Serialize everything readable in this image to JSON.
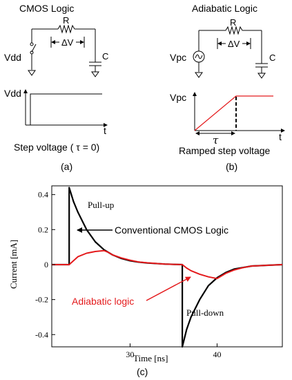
{
  "panel_a": {
    "title": "CMOS Logic",
    "resistor_label": "R",
    "delta_v_label": "ΔV",
    "capacitor_label": "C",
    "source_label": "Vdd",
    "axis_y_label": "Vdd",
    "axis_x_label": "t",
    "caption": "Step voltage ( τ = 0)",
    "tag": "(a)"
  },
  "panel_b": {
    "title": "Adiabatic Logic",
    "resistor_label": "R",
    "delta_v_label": "ΔV",
    "capacitor_label": "C",
    "source_label": "Vpc",
    "axis_y_label": "Vpc",
    "axis_x_label": "t",
    "tau_label": "τ",
    "caption": "Ramped step voltage",
    "tag": "(b)"
  },
  "panel_c": {
    "tag": "(c)",
    "annotation_pullup": "Pull-up",
    "annotation_pulldown": "Pull-down",
    "annotation_cmos": "Conventional CMOS Logic",
    "annotation_adiabatic": "Adiabatic logic",
    "colors": {
      "cmos": "#000000",
      "adiabatic": "#e41a1c"
    }
  },
  "chart_data": {
    "type": "line",
    "xlabel": "Time [ns]",
    "ylabel": "Current [mA]",
    "xlim": [
      21,
      47.5
    ],
    "ylim": [
      -0.47,
      0.45
    ],
    "x_ticks": [
      30,
      40
    ],
    "y_ticks": [
      0.4,
      0.2,
      0,
      -0.2,
      -0.4
    ],
    "y_tick_labels": [
      "0.4",
      "0.2",
      "0",
      "-0.2",
      "-0.4"
    ],
    "grid": false,
    "series": [
      {
        "color": "#000000",
        "x": [
          21,
          23,
          23,
          23.5,
          24,
          25,
          26,
          27,
          28,
          29,
          30,
          31,
          32,
          34,
          36,
          36,
          36.5,
          37,
          38,
          39,
          40,
          41,
          42,
          44,
          47.5
        ],
        "y": [
          0,
          0,
          0.44,
          0.36,
          0.3,
          0.2,
          0.13,
          0.085,
          0.055,
          0.035,
          0.022,
          0.014,
          0.009,
          0.003,
          0,
          -0.47,
          -0.37,
          -0.3,
          -0.2,
          -0.12,
          -0.075,
          -0.045,
          -0.025,
          -0.008,
          0
        ]
      },
      {
        "color": "#e41a1c",
        "x": [
          21,
          23,
          24,
          25,
          26,
          27,
          27.5,
          28,
          29,
          30,
          31,
          32,
          34,
          36,
          36.5,
          37,
          38,
          39,
          40,
          40.5,
          41,
          42,
          43,
          44,
          47.5
        ],
        "y": [
          0,
          0,
          0.045,
          0.065,
          0.075,
          0.08,
          0.07,
          0.055,
          0.038,
          0.025,
          0.015,
          0.01,
          0.003,
          0,
          -0.02,
          -0.035,
          -0.055,
          -0.07,
          -0.08,
          -0.065,
          -0.05,
          -0.03,
          -0.017,
          -0.008,
          0
        ]
      }
    ]
  }
}
